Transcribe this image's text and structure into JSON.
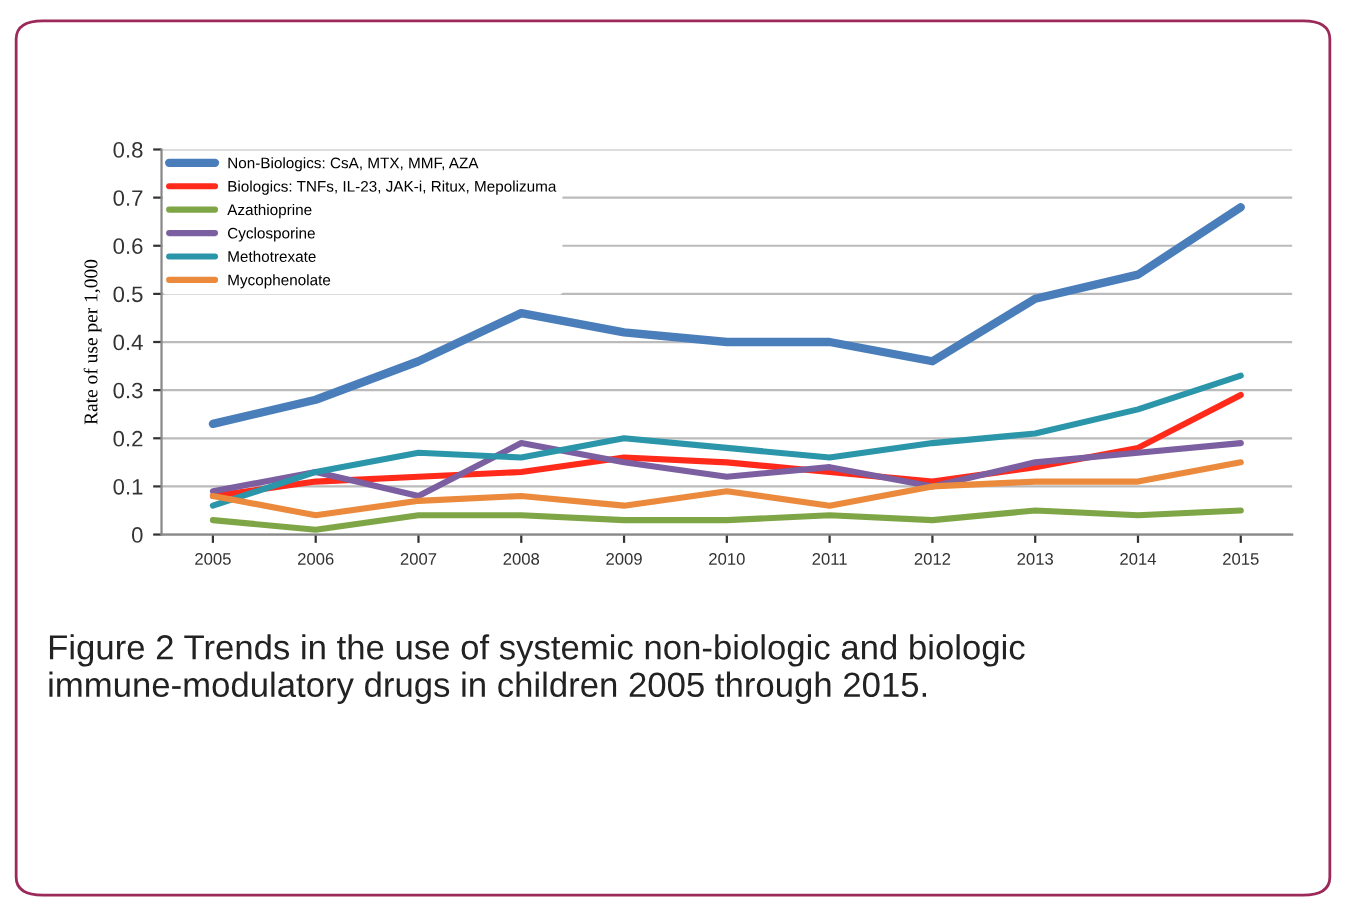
{
  "chart_data": {
    "type": "line",
    "ylabel": "Rate of use per 1,000",
    "categories": [
      "2005",
      "2006",
      "2007",
      "2008",
      "2009",
      "2010",
      "2011",
      "2012",
      "2013",
      "2014",
      "2015"
    ],
    "series": [
      {
        "name": "Non-Biologics: CsA, MTX, MMF, AZA",
        "color": "#4a7ebb",
        "values": [
          0.23,
          0.28,
          0.36,
          0.46,
          0.42,
          0.4,
          0.4,
          0.36,
          0.49,
          0.54,
          0.68
        ]
      },
      {
        "name": "Biologics: TNFs, IL-23, JAK-i, Ritux, Mepolizuma",
        "color": "#ff2a1a",
        "values": [
          0.08,
          0.11,
          0.12,
          0.13,
          0.16,
          0.15,
          0.13,
          0.11,
          0.14,
          0.18,
          0.29
        ]
      },
      {
        "name": "Azathioprine",
        "color": "#7fa646",
        "values": [
          0.03,
          0.01,
          0.04,
          0.04,
          0.03,
          0.03,
          0.04,
          0.03,
          0.05,
          0.04,
          0.05
        ]
      },
      {
        "name": "Cyclosporine",
        "color": "#7b5fa0",
        "values": [
          0.09,
          0.13,
          0.08,
          0.19,
          0.15,
          0.12,
          0.14,
          0.1,
          0.15,
          0.17,
          0.19
        ]
      },
      {
        "name": "Methotrexate",
        "color": "#2b96aa",
        "values": [
          0.06,
          0.13,
          0.17,
          0.16,
          0.2,
          0.18,
          0.16,
          0.19,
          0.21,
          0.26,
          0.33
        ]
      },
      {
        "name": "Mycophenolate",
        "color": "#eb8a3c",
        "values": [
          0.08,
          0.04,
          0.07,
          0.08,
          0.06,
          0.09,
          0.06,
          0.1,
          0.11,
          0.11,
          0.15
        ]
      }
    ],
    "ylim": [
      0,
      0.8
    ],
    "yticks": [
      0,
      0.1,
      0.2,
      0.3,
      0.4,
      0.5,
      0.6,
      0.7,
      0.8
    ],
    "grid": "y",
    "legend": "top left",
    "line_style": "solid",
    "marker": "none",
    "annotations": [
      "Figure 2 Trends in the use of systemic non-biologic and biologic immune-modulatory drugs in children 2005 through 2015."
    ]
  }
}
